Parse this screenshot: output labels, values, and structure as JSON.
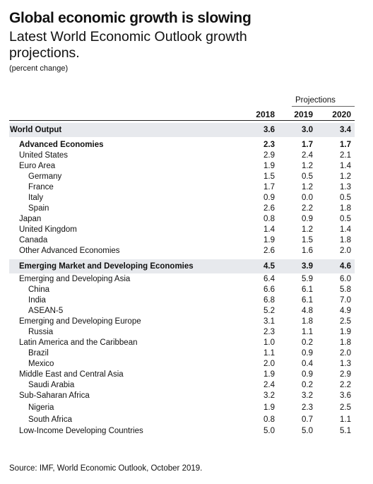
{
  "title": "Global economic growth is slowing",
  "subtitle": "Latest World Economic Outlook growth projections.",
  "units": "(percent change)",
  "table": {
    "projections_label": "Projections",
    "years": [
      "2018",
      "2019",
      "2020"
    ],
    "rows": [
      {
        "label": "World Output",
        "values": [
          "3.6",
          "3.0",
          "3.4"
        ]
      },
      {
        "label": "Advanced Economies",
        "values": [
          "2.3",
          "1.7",
          "1.7"
        ]
      },
      {
        "label": "United States",
        "values": [
          "2.9",
          "2.4",
          "2.1"
        ]
      },
      {
        "label": "Euro Area",
        "values": [
          "1.9",
          "1.2",
          "1.4"
        ]
      },
      {
        "label": "Germany",
        "values": [
          "1.5",
          "0.5",
          "1.2"
        ]
      },
      {
        "label": "France",
        "values": [
          "1.7",
          "1.2",
          "1.3"
        ]
      },
      {
        "label": "Italy",
        "values": [
          "0.9",
          "0.0",
          "0.5"
        ]
      },
      {
        "label": "Spain",
        "values": [
          "2.6",
          "2.2",
          "1.8"
        ]
      },
      {
        "label": "Japan",
        "values": [
          "0.8",
          "0.9",
          "0.5"
        ]
      },
      {
        "label": "United Kingdom",
        "values": [
          "1.4",
          "1.2",
          "1.4"
        ]
      },
      {
        "label": "Canada",
        "values": [
          "1.9",
          "1.5",
          "1.8"
        ]
      },
      {
        "label": "Other Advanced Economies",
        "values": [
          "2.6",
          "1.6",
          "2.0"
        ]
      },
      {
        "label": "Emerging Market and Developing Economies",
        "values": [
          "4.5",
          "3.9",
          "4.6"
        ]
      },
      {
        "label": "Emerging and Developing Asia",
        "values": [
          "6.4",
          "5.9",
          "6.0"
        ]
      },
      {
        "label": "China",
        "values": [
          "6.6",
          "6.1",
          "5.8"
        ]
      },
      {
        "label": "India",
        "values": [
          "6.8",
          "6.1",
          "7.0"
        ]
      },
      {
        "label": "ASEAN-5",
        "values": [
          "5.2",
          "4.8",
          "4.9"
        ]
      },
      {
        "label": "Emerging and Developing Europe",
        "values": [
          "3.1",
          "1.8",
          "2.5"
        ]
      },
      {
        "label": "Russia",
        "values": [
          "2.3",
          "1.1",
          "1.9"
        ]
      },
      {
        "label": "Latin America and the Caribbean",
        "values": [
          "1.0",
          "0.2",
          "1.8"
        ]
      },
      {
        "label": "Brazil",
        "values": [
          "1.1",
          "0.9",
          "2.0"
        ]
      },
      {
        "label": "Mexico",
        "values": [
          "2.0",
          "0.4",
          "1.3"
        ]
      },
      {
        "label": "Middle East and Central Asia",
        "values": [
          "1.9",
          "0.9",
          "2.9"
        ]
      },
      {
        "label": "Saudi Arabia",
        "values": [
          "2.4",
          "0.2",
          "2.2"
        ]
      },
      {
        "label": "Sub-Saharan Africa",
        "values": [
          "3.2",
          "3.2",
          "3.6"
        ]
      },
      {
        "label": "Nigeria",
        "values": [
          "1.9",
          "2.3",
          "2.5"
        ]
      },
      {
        "label": "South Africa",
        "values": [
          "0.8",
          "0.7",
          "1.1"
        ]
      },
      {
        "label": "Low-Income Developing Countries",
        "values": [
          "5.0",
          "5.0",
          "5.1"
        ]
      }
    ]
  },
  "source": "Source: IMF, World Economic Outlook, October 2019."
}
